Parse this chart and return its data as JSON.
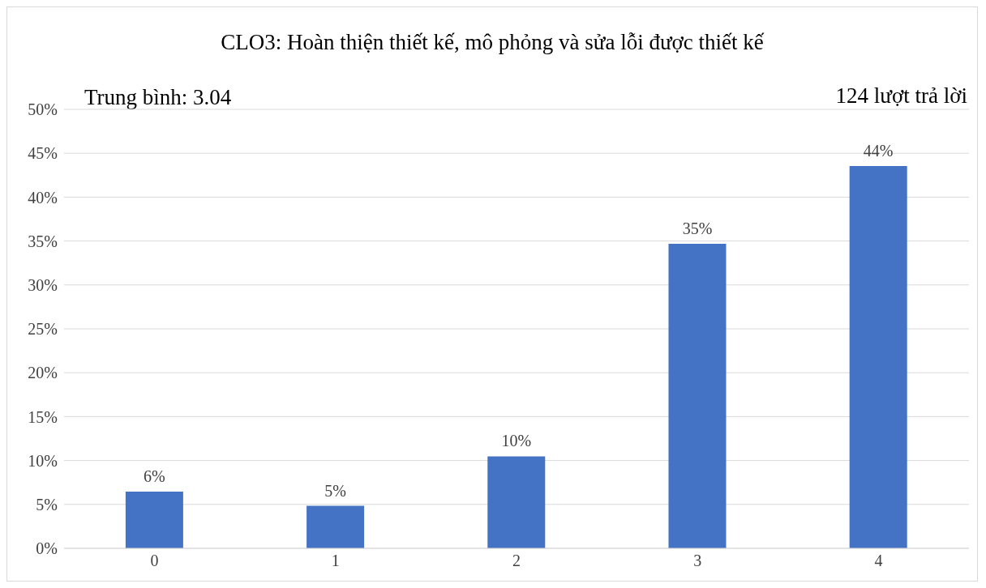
{
  "chart_data": {
    "type": "bar",
    "title": "CLO3: Hoàn thiện thiết kế, mô phỏng và sửa lỗi được thiết kế",
    "annotations": [
      "Trung bình: 3.04",
      "124 lượt trả lời"
    ],
    "categories": [
      "0",
      "1",
      "2",
      "3",
      "4"
    ],
    "values": [
      6.45,
      4.84,
      10.48,
      34.68,
      43.55
    ],
    "value_labels": [
      "6%",
      "5%",
      "10%",
      "35%",
      "44%"
    ],
    "color": "#4472c4",
    "ylim": [
      0,
      50
    ],
    "yticks": [
      {
        "value": 0,
        "label": "0%"
      },
      {
        "value": 5,
        "label": "5%"
      },
      {
        "value": 10,
        "label": "10%"
      },
      {
        "value": 15,
        "label": "15%"
      },
      {
        "value": 20,
        "label": "20%"
      },
      {
        "value": 25,
        "label": "25%"
      },
      {
        "value": 30,
        "label": "30%"
      },
      {
        "value": 35,
        "label": "35%"
      },
      {
        "value": 40,
        "label": "40%"
      },
      {
        "value": 45,
        "label": "45%"
      },
      {
        "value": 50,
        "label": "50%"
      }
    ],
    "grid": "y",
    "legend": false
  }
}
